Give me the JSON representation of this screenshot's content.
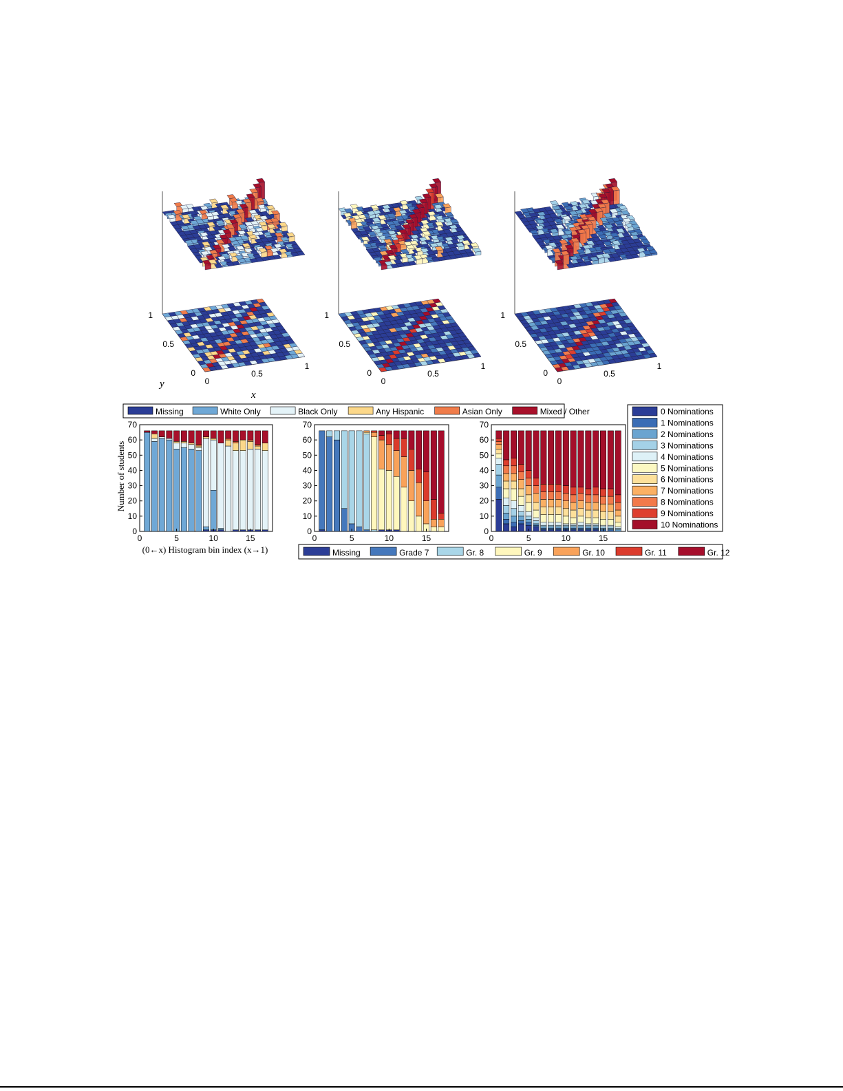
{
  "colors": {
    "race": [
      "#2b3d96",
      "#6fa8d6",
      "#e4f3f8",
      "#fcd88a",
      "#f07c4a",
      "#a8102a"
    ],
    "grade": [
      "#2b3d96",
      "#4578bc",
      "#a9d6e8",
      "#fff7bd",
      "#f9a25a",
      "#db3b2c",
      "#a50d2b"
    ],
    "nominations": [
      "#2b3d96",
      "#3b6db5",
      "#6aa4d0",
      "#a4d1e7",
      "#def1f7",
      "#fcf8c2",
      "#fde09a",
      "#fbb064",
      "#f27a4b",
      "#de3f2f",
      "#a40f2a"
    ],
    "surface_base": "#27378a"
  },
  "surface_axes": {
    "x_label": "x",
    "y_label": "y",
    "x_ticks": [
      "0",
      "0.5",
      "1"
    ],
    "y_ticks": [
      "0",
      "0.5",
      "1"
    ]
  },
  "race_legend": {
    "items": [
      "Missing",
      "White Only",
      "Black Only",
      "Any Hispanic",
      "Asian Only",
      "Mixed / Other"
    ]
  },
  "grade_legend": {
    "items": [
      "Missing",
      "Grade 7",
      "Gr. 8",
      "Gr. 9",
      "Gr. 10",
      "Gr. 11",
      "Gr. 12"
    ]
  },
  "nominations_legend": {
    "items": [
      "0 Nominations",
      "1 Nominations",
      "2 Nominations",
      "3 Nominations",
      "4 Nominations",
      "5 Nominations",
      "6 Nominations",
      "7 Nominations",
      "8 Nominations",
      "9 Nominations",
      "10 Nominations"
    ]
  },
  "bar_axes": {
    "ylabel": "Number of students",
    "xlabel": "(0←x)  Histogram bin index  (x→1)",
    "y_ticks": [
      "0",
      "10",
      "20",
      "30",
      "40",
      "50",
      "60",
      "70"
    ],
    "x_ticks": [
      "0",
      "5",
      "10",
      "15"
    ]
  },
  "chart_data": [
    {
      "type": "bar",
      "stacked": true,
      "ylabel": "Number of students",
      "xlabel": "(0←x) Histogram bin index (x→1)",
      "ylim": [
        0,
        70
      ],
      "xlim": [
        0,
        18
      ],
      "categories": [
        1,
        2,
        3,
        4,
        5,
        6,
        7,
        8,
        9,
        10,
        11,
        12,
        13,
        14,
        15,
        16,
        17
      ],
      "series": [
        {
          "name": "Missing",
          "values": [
            0,
            0,
            0,
            0,
            0,
            0,
            0,
            0,
            1,
            1,
            1,
            0,
            1,
            1,
            1,
            1,
            1
          ]
        },
        {
          "name": "White Only",
          "values": [
            65,
            59,
            61,
            60,
            54,
            55,
            54,
            53,
            2,
            26,
            1,
            0,
            0,
            0,
            0,
            0,
            0
          ]
        },
        {
          "name": "Black Only",
          "values": [
            0,
            2,
            1,
            1,
            4,
            3,
            3,
            2,
            58,
            33,
            56,
            56,
            52,
            52,
            53,
            53,
            52
          ]
        },
        {
          "name": "Any Hispanic",
          "values": [
            0,
            3,
            0,
            0,
            1,
            1,
            1,
            1,
            1,
            1,
            0,
            4,
            5,
            7,
            5,
            2,
            5
          ]
        },
        {
          "name": "Asian Only",
          "values": [
            0,
            0,
            0,
            0,
            0,
            0,
            0,
            1,
            0,
            0,
            0,
            1,
            1,
            0,
            1,
            1,
            0
          ]
        },
        {
          "name": "Mixed / Other",
          "values": [
            1,
            2,
            4,
            5,
            7,
            7,
            8,
            9,
            4,
            5,
            8,
            5,
            7,
            6,
            6,
            9,
            8
          ]
        }
      ]
    },
    {
      "type": "bar",
      "stacked": true,
      "ylim": [
        0,
        70
      ],
      "xlim": [
        0,
        18
      ],
      "categories": [
        1,
        2,
        3,
        4,
        5,
        6,
        7,
        8,
        9,
        10,
        11,
        12,
        13,
        14,
        15,
        16,
        17
      ],
      "series": [
        {
          "name": "Missing",
          "values": [
            1,
            0,
            0,
            0,
            0,
            0,
            0,
            0,
            1,
            1,
            1,
            0,
            0,
            0,
            0,
            0,
            0
          ]
        },
        {
          "name": "Grade 7",
          "values": [
            65,
            62,
            60,
            15,
            5,
            3,
            1,
            0,
            0,
            0,
            0,
            0,
            0,
            0,
            0,
            0,
            0
          ]
        },
        {
          "name": "Gr. 8",
          "values": [
            0,
            4,
            6,
            51,
            61,
            63,
            63,
            1,
            0,
            0,
            0,
            0,
            0,
            0,
            0,
            0,
            0
          ]
        },
        {
          "name": "Gr. 9",
          "values": [
            0,
            0,
            0,
            0,
            0,
            0,
            1,
            61,
            40,
            39,
            35,
            29,
            20,
            10,
            5,
            3,
            3
          ]
        },
        {
          "name": "Gr. 10",
          "values": [
            0,
            0,
            0,
            0,
            0,
            0,
            1,
            3,
            19,
            17,
            17,
            20,
            20,
            22,
            15,
            5,
            5
          ]
        },
        {
          "name": "Gr. 11",
          "values": [
            0,
            0,
            0,
            0,
            0,
            0,
            0,
            1,
            3,
            7,
            8,
            12,
            14,
            9,
            19,
            13,
            4
          ]
        },
        {
          "name": "Gr. 12",
          "values": [
            0,
            0,
            0,
            0,
            0,
            0,
            0,
            0,
            3,
            2,
            5,
            5,
            12,
            25,
            27,
            45,
            54
          ]
        }
      ]
    },
    {
      "type": "bar",
      "stacked": true,
      "ylim": [
        0,
        70
      ],
      "xlim": [
        0,
        18
      ],
      "categories": [
        1,
        2,
        3,
        4,
        5,
        6,
        7,
        8,
        9,
        10,
        11,
        12,
        13,
        14,
        15,
        16,
        17
      ],
      "series": [
        {
          "name": "0 Nominations",
          "values": [
            21,
            5,
            3,
            5,
            4,
            3,
            1,
            1,
            1,
            1,
            1,
            1,
            1,
            1,
            0,
            0,
            0
          ]
        },
        {
          "name": "1 Nominations",
          "values": [
            8,
            3,
            3,
            2,
            2,
            1,
            1,
            1,
            1,
            1,
            1,
            1,
            1,
            1,
            1,
            1,
            0
          ]
        },
        {
          "name": "2 Nominations",
          "values": [
            8,
            4,
            4,
            3,
            2,
            1,
            1,
            1,
            1,
            1,
            1,
            1,
            1,
            1,
            1,
            1,
            1
          ]
        },
        {
          "name": "3 Nominations",
          "values": [
            7,
            5,
            5,
            3,
            2,
            2,
            1,
            1,
            1,
            1,
            1,
            1,
            1,
            1,
            1,
            1,
            1
          ]
        },
        {
          "name": "4 Nominations",
          "values": [
            4,
            5,
            5,
            4,
            3,
            2,
            2,
            2,
            2,
            1,
            1,
            2,
            1,
            1,
            1,
            1,
            1
          ]
        },
        {
          "name": "5 Nominations",
          "values": [
            3,
            6,
            8,
            6,
            6,
            5,
            5,
            5,
            5,
            5,
            4,
            4,
            4,
            4,
            4,
            4,
            3
          ]
        },
        {
          "name": "6 Nominations",
          "values": [
            3,
            5,
            5,
            5,
            5,
            5,
            5,
            5,
            5,
            5,
            5,
            5,
            5,
            5,
            5,
            5,
            4
          ]
        },
        {
          "name": "7 Nominations",
          "values": [
            3,
            5,
            5,
            6,
            6,
            6,
            5,
            5,
            5,
            5,
            5,
            5,
            5,
            5,
            5,
            5,
            4
          ]
        },
        {
          "name": "8 Nominations",
          "values": [
            2,
            5,
            5,
            5,
            5,
            5,
            5,
            5,
            5,
            5,
            5,
            5,
            5,
            5,
            5,
            5,
            5
          ]
        },
        {
          "name": "9 Nominations",
          "values": [
            2,
            4,
            5,
            5,
            5,
            5,
            5,
            5,
            5,
            5,
            5,
            4,
            4,
            5,
            5,
            5,
            5
          ]
        },
        {
          "name": "10 Nominations",
          "values": [
            5,
            19,
            18,
            22,
            26,
            31,
            35,
            35,
            35,
            36,
            37,
            37,
            38,
            37,
            38,
            38,
            42
          ]
        }
      ]
    },
    {
      "type": "heatmap",
      "representation": "3d-bar surface with projected heatmap",
      "grid_size": [
        17,
        17
      ],
      "xlim": [
        0,
        1
      ],
      "ylim": [
        0,
        1
      ],
      "notes_colorscale": "race"
    },
    {
      "type": "heatmap",
      "representation": "3d-bar surface with projected heatmap",
      "grid_size": [
        17,
        17
      ],
      "xlim": [
        0,
        1
      ],
      "ylim": [
        0,
        1
      ],
      "notes_colorscale": "grade"
    },
    {
      "type": "heatmap",
      "representation": "3d-bar surface with projected heatmap",
      "grid_size": [
        17,
        17
      ],
      "xlim": [
        0,
        1
      ],
      "ylim": [
        0,
        1
      ],
      "notes_colorscale": "nominations"
    }
  ]
}
